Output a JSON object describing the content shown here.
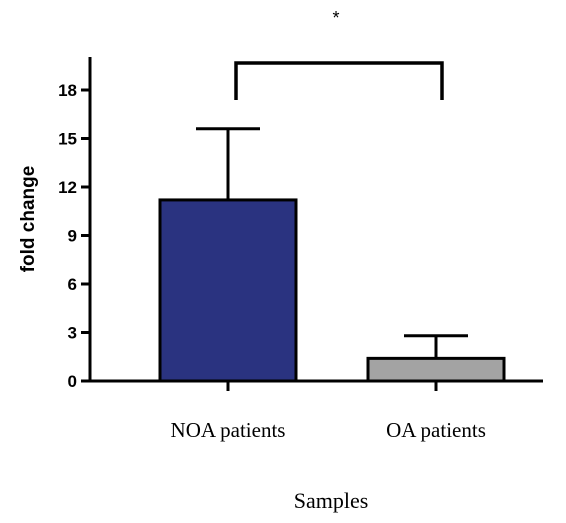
{
  "chart_data": {
    "type": "bar",
    "categories": [
      "NOA patients",
      "OA patients"
    ],
    "values": [
      11.2,
      1.4
    ],
    "errors": [
      4.4,
      1.4
    ],
    "xlabel": "Samples",
    "ylabel": "fold change",
    "ylim": [
      0,
      18
    ],
    "yticks": [
      0,
      3,
      6,
      9,
      12,
      15,
      18
    ],
    "bar_colors": [
      "#2a3380",
      "#a3a3a3"
    ],
    "significance": {
      "label": "*",
      "between": [
        0,
        1
      ]
    },
    "grid": false,
    "legend": "none"
  }
}
